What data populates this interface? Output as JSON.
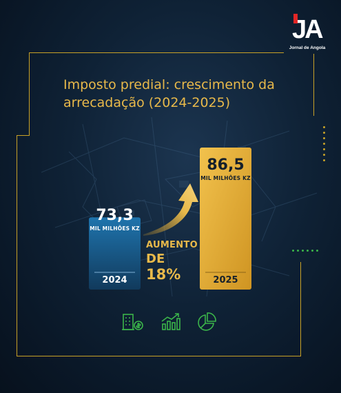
{
  "brand": {
    "logo_text": "JA",
    "logo_subtitle": "Jornal de Angola",
    "red_accent": "#e32626"
  },
  "title_lines": [
    "Imposto predial: crescimento da",
    "arrecadação (2024-2025)"
  ],
  "colors": {
    "background": "#0f2236",
    "gold": "#e8b94a",
    "frame": "#c9a227",
    "blue_bar_top": "#1f6fa6",
    "blue_bar_bottom": "#123f63",
    "gold_bar": "#e2ad32",
    "icon_green": "#3bb54a"
  },
  "increase": {
    "label": "AUMENTO",
    "prefix": "DE",
    "value": "18%"
  },
  "chart_data": {
    "type": "bar",
    "title": "Imposto predial: crescimento da arrecadação (2024-2025)",
    "categories": [
      "2024",
      "2025"
    ],
    "values": [
      73.3,
      86.5
    ],
    "value_labels": [
      "73,3",
      "86,5"
    ],
    "unit_label": "MIL MILHÕES KZ",
    "growth_percent": 18,
    "ylim": [
      0,
      100
    ],
    "grid": false,
    "xlabel": "",
    "ylabel": ""
  },
  "icons": [
    "building-money-icon",
    "chart-growth-icon",
    "pie-chart-icon"
  ]
}
